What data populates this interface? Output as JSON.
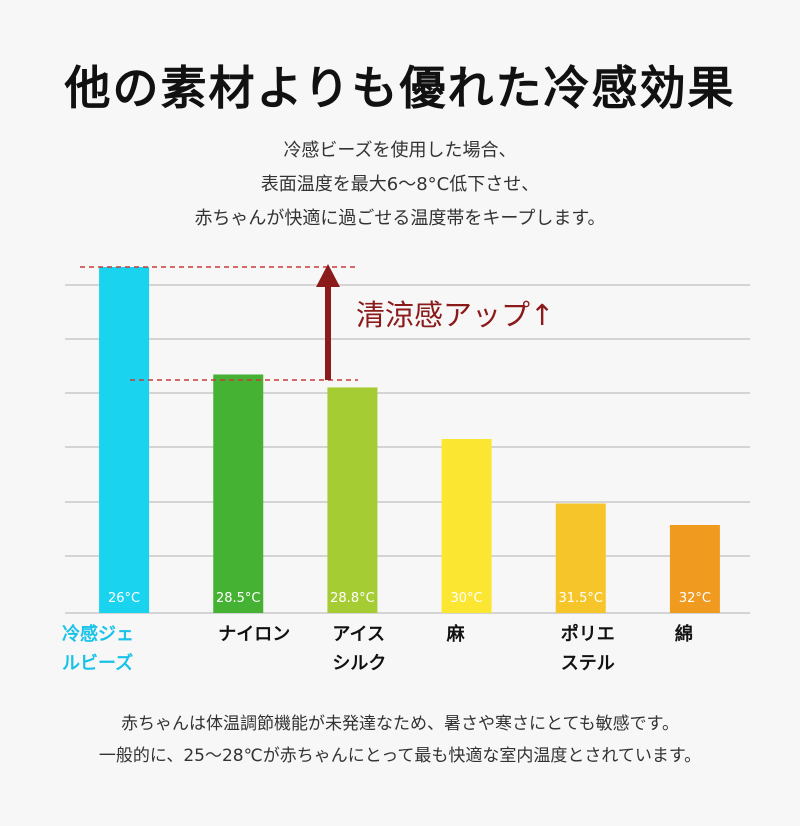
{
  "title": "他の素材よりも優れた冷感効果",
  "subtitle_lines": [
    "冷感ビーズを使用した場合、",
    "表面温度を最大6〜8°C低下させ、",
    "赤ちゃんが快適に過ごせる温度帯をキープします。"
  ],
  "annotation": "清涼感アップ↑",
  "footnote_lines": [
    "赤ちゃんは体温調節機能が未発達なため、暑さや寒さにとても敏感です。",
    "一般的に、25〜28℃が赤ちゃんにとって最も快適な室内温度とされています。"
  ],
  "colors": {
    "annotation": "#8b1a1a",
    "highlight_label": "#19c3e8",
    "grid": "#c8c8c8"
  },
  "chart_data": {
    "type": "bar",
    "categories": [
      "冷感ジェルビーズ",
      "ナイロン",
      "アイスシルク",
      "麻",
      "ポリエステル",
      "綿"
    ],
    "category_label_lines": [
      [
        "冷感ジェ",
        "ルビーズ"
      ],
      [
        "ナイロン"
      ],
      [
        "アイス",
        "シルク"
      ],
      [
        "麻"
      ],
      [
        "ポリエ",
        "ステル"
      ],
      [
        "綿"
      ]
    ],
    "values": [
      26,
      28.5,
      28.8,
      30,
      31.5,
      32
    ],
    "data_labels": [
      "26°C",
      "28.5°C",
      "28.8°C",
      "30°C",
      "31.5°C",
      "32°C"
    ],
    "bar_colors": [
      "#1ad3ee",
      "#45b233",
      "#a6cc33",
      "#fbe631",
      "#f5c52a",
      "#f09a20"
    ],
    "lower_is_taller": true,
    "grid": true
  }
}
